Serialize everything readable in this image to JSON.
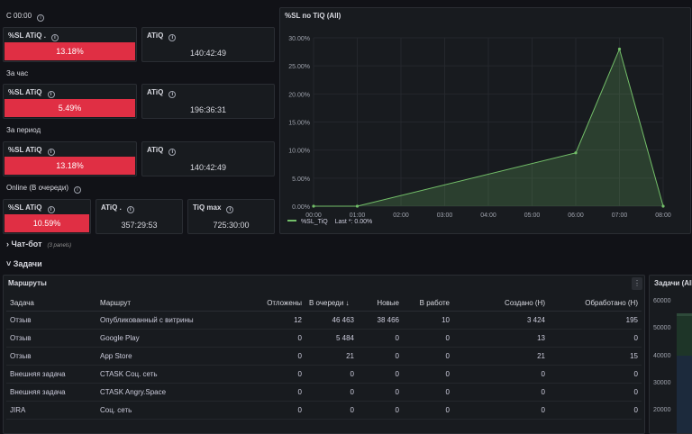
{
  "sections": {
    "since": "С 00:00",
    "hour": "За час",
    "period": "За период",
    "online": "Online (В очереди)"
  },
  "stats": {
    "s1_sl_title": "%SL ATiQ .",
    "s1_sl_value": "13.18%",
    "s1_atiq_title": "ATiQ",
    "s1_atiq_value": "140:42:49",
    "s2_sl_title": "%SL ATiQ",
    "s2_sl_value": "5.49%",
    "s2_atiq_title": "ATiQ",
    "s2_atiq_value": "196:36:31",
    "s3_sl_title": "%SL ATiQ",
    "s3_sl_value": "13.18%",
    "s3_atiq_title": "ATiQ",
    "s3_atiq_value": "140:42:49",
    "s4_sl_title": "%SL ATiQ",
    "s4_sl_value": "10.59%",
    "s4_atiq_title": "ATiQ .",
    "s4_atiq_value": "357:29:53",
    "s4_tiq_title": "TiQ max",
    "s4_tiq_value": "725:30:00"
  },
  "chart_panel": {
    "title": "%SL по TiQ (All)",
    "legend_series": "%SL_TiQ",
    "legend_last": "Last *: 0.00%"
  },
  "chart_data": {
    "type": "area",
    "x": [
      "00:00",
      "01:00",
      "02:00",
      "03:00",
      "04:00",
      "05:00",
      "06:00",
      "07:00",
      "08:00"
    ],
    "y_tick_labels": [
      "0.00%",
      "5.00%",
      "10.00%",
      "15.00%",
      "20.00%",
      "25.00%",
      "30.00%"
    ],
    "ylim": [
      0,
      30
    ],
    "series": [
      {
        "name": "%SL_TiQ",
        "points": [
          {
            "x": "00:00",
            "y": 0
          },
          {
            "x": "01:00",
            "y": 0
          },
          {
            "x": "06:00",
            "y": 9.5
          },
          {
            "x": "07:00",
            "y": 28
          },
          {
            "x": "08:00",
            "y": 0
          }
        ],
        "color": "#73bf69"
      }
    ],
    "grid": true,
    "legend": "bottom-left"
  },
  "rows": {
    "chatbot": "Чат-бот",
    "chatbot_count": "(3 panels)",
    "tasks": "Задачи"
  },
  "table_panel": {
    "title": "Маршруты",
    "columns": [
      "Задача",
      "Маршрут",
      "Отложены",
      "В очереди ↓",
      "Новые",
      "В работе",
      "Создано (Н)",
      "Обработано (Н)"
    ],
    "rows": [
      [
        "Отзыв",
        "Опубликованный с витрины",
        "12",
        "46 463",
        "38 466",
        "10",
        "3 424",
        "195"
      ],
      [
        "Отзыв",
        "Google Play",
        "0",
        "5 484",
        "0",
        "0",
        "13",
        "0"
      ],
      [
        "Отзыв",
        "App Store",
        "0",
        "21",
        "0",
        "0",
        "21",
        "15"
      ],
      [
        "Внешняя задача",
        "CTASK Соц. сеть",
        "0",
        "0",
        "0",
        "0",
        "0",
        "0"
      ],
      [
        "Внешняя задача",
        "CTASK Angry.Space",
        "0",
        "0",
        "0",
        "0",
        "0",
        "0"
      ],
      [
        "JIRA",
        "Соц. сеть",
        "0",
        "0",
        "0",
        "0",
        "0",
        "0"
      ]
    ]
  },
  "side_panel": {
    "title": "Задачи (All",
    "y_ticks": [
      "60000",
      "50000",
      "40000",
      "30000",
      "20000"
    ]
  }
}
